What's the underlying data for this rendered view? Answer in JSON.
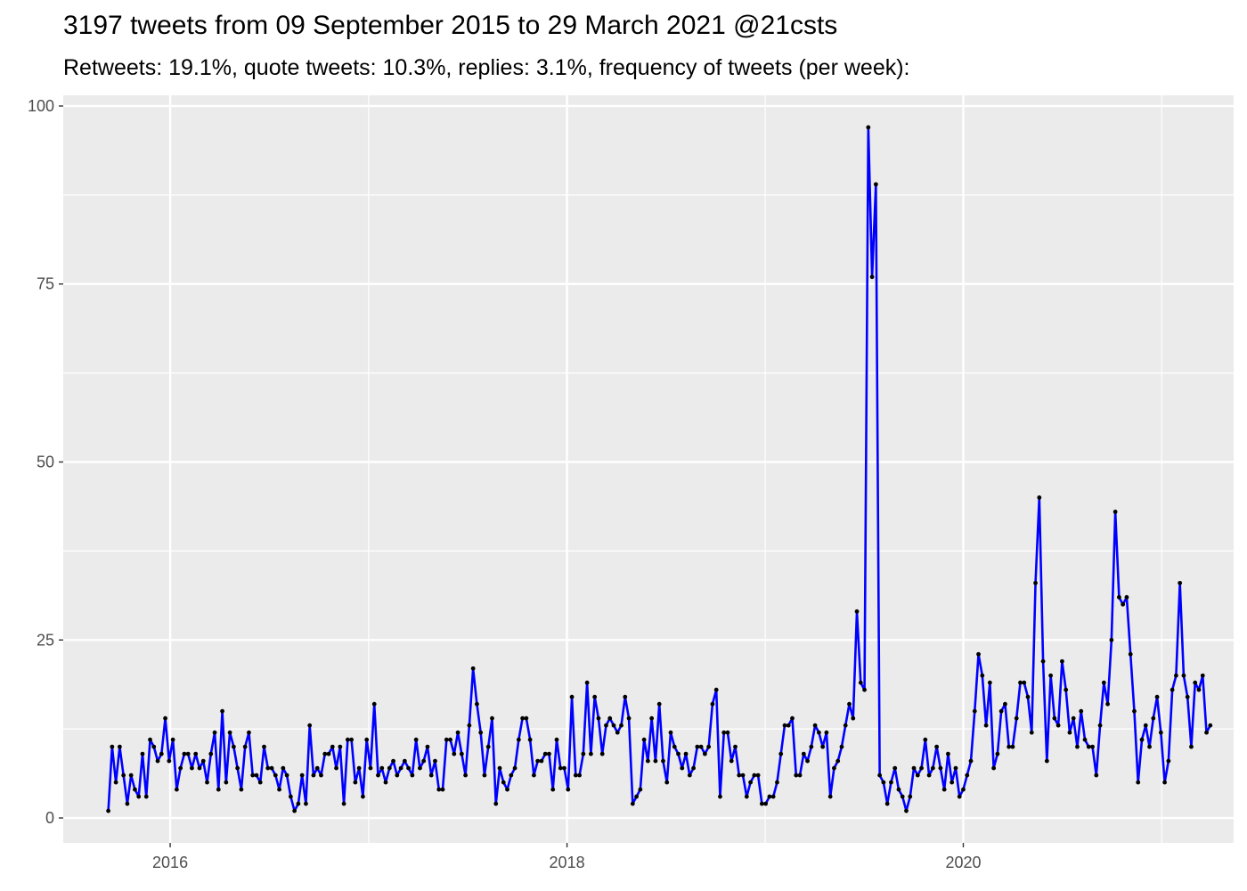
{
  "chart_data": {
    "type": "line",
    "title": "3197 tweets from 09 September 2015 to 29 March 2021 @21csts",
    "subtitle": "Retweets: 19.1%, quote tweets: 10.3%, replies: 3.1%, frequency of tweets (per week):",
    "xlabel": "",
    "ylabel": "",
    "x_start": "2015-09-09",
    "x_step_days": 7,
    "xlim": [
      "2015-06-18",
      "2021-05-13"
    ],
    "ylim": [
      -3.5,
      101.5
    ],
    "x_ticks": [
      {
        "date": "2016-01-01",
        "label": "2016"
      },
      {
        "date": "2018-01-01",
        "label": "2018"
      },
      {
        "date": "2020-01-01",
        "label": "2020"
      }
    ],
    "y_ticks": [
      0,
      25,
      50,
      75,
      100
    ],
    "y_tick_labels": [
      "0",
      "25",
      "50",
      "75",
      "100"
    ],
    "grid": true,
    "line_color": "#0000ff",
    "point_color": "#000000",
    "panel_color": "#ebebeb",
    "series": [
      {
        "values": [
          1,
          10,
          5,
          10,
          6,
          2,
          6,
          4,
          3,
          9,
          3,
          11,
          10,
          8,
          9,
          14,
          8,
          11,
          4,
          7,
          9,
          9,
          7,
          9,
          7,
          8,
          5,
          9,
          12,
          4,
          15,
          5,
          12,
          10,
          7,
          4,
          10,
          12,
          6,
          6,
          5,
          10,
          7,
          7,
          6,
          4,
          7,
          6,
          3,
          1,
          2,
          6,
          2,
          13,
          6,
          7,
          6,
          9,
          9,
          10,
          7,
          10,
          2,
          11,
          11,
          5,
          7,
          3,
          11,
          7,
          16,
          6,
          7,
          5,
          7,
          8,
          6,
          7,
          8,
          7,
          6,
          11,
          7,
          8,
          10,
          6,
          8,
          4,
          4,
          11,
          11,
          9,
          12,
          9,
          6,
          13,
          21,
          16,
          12,
          6,
          10,
          14,
          2,
          7,
          5,
          4,
          6,
          7,
          11,
          14,
          14,
          11,
          6,
          8,
          8,
          9,
          9,
          4,
          11,
          7,
          7,
          4,
          17,
          6,
          6,
          9,
          19,
          9,
          17,
          14,
          9,
          13,
          14,
          13,
          12,
          13,
          17,
          14,
          2,
          3,
          4,
          11,
          8,
          14,
          8,
          16,
          8,
          5,
          12,
          10,
          9,
          7,
          9,
          6,
          7,
          10,
          10,
          9,
          10,
          16,
          18,
          3,
          12,
          12,
          8,
          10,
          6,
          6,
          3,
          5,
          6,
          6,
          2,
          2,
          3,
          3,
          5,
          9,
          13,
          13,
          14,
          6,
          6,
          9,
          8,
          10,
          13,
          12,
          10,
          12,
          3,
          7,
          8,
          10,
          13,
          16,
          14,
          29,
          19,
          18,
          97,
          76,
          89,
          6,
          5,
          2,
          5,
          7,
          4,
          3,
          1,
          3,
          7,
          6,
          7,
          11,
          6,
          7,
          10,
          7,
          4,
          9,
          5,
          7,
          3,
          4,
          6,
          8,
          15,
          23,
          20,
          13,
          19,
          7,
          9,
          15,
          16,
          10,
          10,
          14,
          19,
          19,
          17,
          12,
          33,
          45,
          22,
          8,
          20,
          14,
          13,
          22,
          18,
          12,
          14,
          10,
          15,
          11,
          10,
          10,
          6,
          13,
          19,
          16,
          25,
          43,
          31,
          30,
          31,
          23,
          15,
          5,
          11,
          13,
          10,
          14,
          17,
          12,
          5,
          8,
          18,
          20,
          33,
          20,
          17,
          10,
          19,
          18,
          20,
          12,
          13
        ]
      }
    ]
  }
}
